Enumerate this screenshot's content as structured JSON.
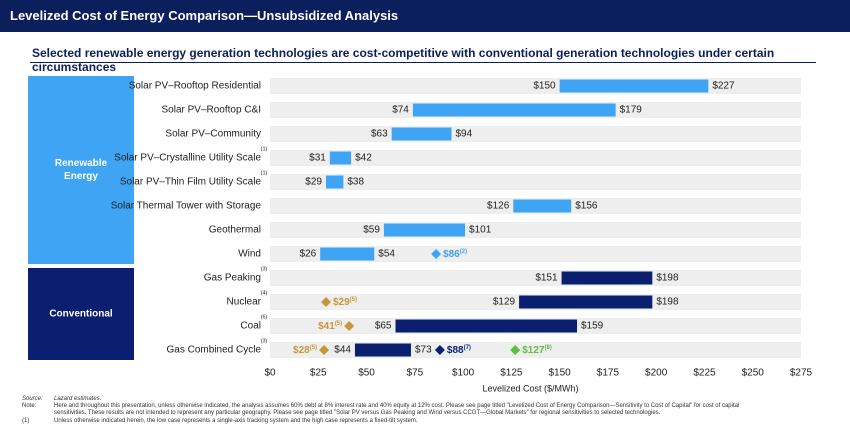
{
  "header": {
    "title": "Levelized Cost of Energy Comparison—Unsubsidized Analysis"
  },
  "subtitle": "Selected renewable energy generation technologies are cost-competitive with conventional generation technologies under certain circumstances",
  "colors": {
    "header_bg": "#0b1f5c",
    "renewable": "#3fa4f4",
    "conventional": "#0b1f70",
    "track": "#eeeeee",
    "gold": "#c9963a",
    "green": "#5cbf43"
  },
  "chart_data": {
    "type": "bar",
    "orientation": "horizontal-range",
    "xlabel": "Levelized Cost ($/MWh)",
    "xlim": [
      0,
      275
    ],
    "xticks": [
      "$0",
      "$25",
      "$50",
      "$75",
      "$100",
      "$125",
      "$150",
      "$175",
      "$200",
      "$225",
      "$250",
      "$275"
    ],
    "groups": [
      {
        "label": "Renewable\nEnergy",
        "label_lines": [
          "Renewable",
          "Energy"
        ],
        "rows": [
          0,
          7
        ]
      },
      {
        "label": "Conventional",
        "label_lines": [
          "Conventional"
        ],
        "rows": [
          8,
          11
        ]
      }
    ],
    "rows": [
      {
        "name": "Solar PV–Rooftop Residential",
        "group": "renewable",
        "low": 150,
        "high": 227,
        "low_label": "$150",
        "high_label": "$227"
      },
      {
        "name": "Solar PV–Rooftop C&I",
        "group": "renewable",
        "low": 74,
        "high": 179,
        "low_label": "$74",
        "high_label": "$179"
      },
      {
        "name": "Solar PV–Community",
        "group": "renewable",
        "low": 63,
        "high": 94,
        "low_label": "$63",
        "high_label": "$94"
      },
      {
        "name": "Solar PV–Crystalline Utility Scale",
        "note": "(1)",
        "group": "renewable",
        "low": 31,
        "high": 42,
        "low_label": "$31",
        "high_label": "$42"
      },
      {
        "name": "Solar PV–Thin Film Utility Scale",
        "note": "(1)",
        "group": "renewable",
        "low": 29,
        "high": 38,
        "low_label": "$29",
        "high_label": "$38"
      },
      {
        "name": "Solar Thermal Tower with Storage",
        "group": "renewable",
        "low": 126,
        "high": 156,
        "low_label": "$126",
        "high_label": "$156"
      },
      {
        "name": "Geothermal",
        "group": "renewable",
        "low": 59,
        "high": 101,
        "low_label": "$59",
        "high_label": "$101"
      },
      {
        "name": "Wind",
        "group": "renewable",
        "low": 26,
        "high": 54,
        "low_label": "$26",
        "high_label": "$54",
        "markers": [
          {
            "value": 86,
            "label": "$86",
            "note": "(2)",
            "color": "#3fa4f4",
            "side": "right"
          }
        ]
      },
      {
        "name": "Gas Peaking",
        "note": "(3)",
        "group": "conventional",
        "low": 151,
        "high": 198,
        "low_label": "$151",
        "high_label": "$198"
      },
      {
        "name": "Nuclear",
        "note": "(4)",
        "group": "conventional",
        "low": 129,
        "high": 198,
        "low_label": "$129",
        "high_label": "$198",
        "markers": [
          {
            "value": 29,
            "label": "$29",
            "note": "(5)",
            "color": "#c9963a",
            "side": "right"
          }
        ]
      },
      {
        "name": "Coal",
        "note": "(6)",
        "group": "conventional",
        "low": 65,
        "high": 159,
        "low_label": "$65",
        "high_label": "$159",
        "markers": [
          {
            "value": 41,
            "label": "$41",
            "note": "(5)",
            "color": "#c9963a",
            "side": "left"
          }
        ]
      },
      {
        "name": "Gas Combined Cycle",
        "note": "(3)",
        "group": "conventional",
        "low": 44,
        "high": 73,
        "low_label": "$44",
        "high_label": "$73",
        "markers": [
          {
            "value": 28,
            "label": "$28",
            "note": "(5)",
            "color": "#c9963a",
            "side": "left"
          },
          {
            "value": 88,
            "label": "$88",
            "note": "(7)",
            "color": "#0b1f70",
            "side": "right"
          },
          {
            "value": 127,
            "label": "$127",
            "note": "(8)",
            "color": "#5cbf43",
            "side": "right"
          }
        ]
      }
    ]
  },
  "footnotes": [
    {
      "key": "Source:",
      "text": "Lazard estimates.",
      "italic": true
    },
    {
      "key": "Note:",
      "text": "Here and throughout this presentation, unless otherwise indicated, the analysis assumes 60% debt at 8% interest rate and 40% equity at 12% cost. Please see page titled \"Levelized Cost of Energy Comparison—Sensitivity to Cost of Capital\" for cost of capital",
      "italic": false
    },
    {
      "key": "",
      "text": "sensitivities. These results are not intended to represent any particular geography. Please see page titled \"Solar PV versus Gas Peaking and Wind versus CCGT—Global Markets\" for regional sensitivities to selected technologies.",
      "italic": false
    },
    {
      "key": "(1)",
      "text": "Unless otherwise indicated herein, the low case represents a single-axis tracking system and the high case represents a fixed-tilt system.",
      "italic": false
    }
  ]
}
